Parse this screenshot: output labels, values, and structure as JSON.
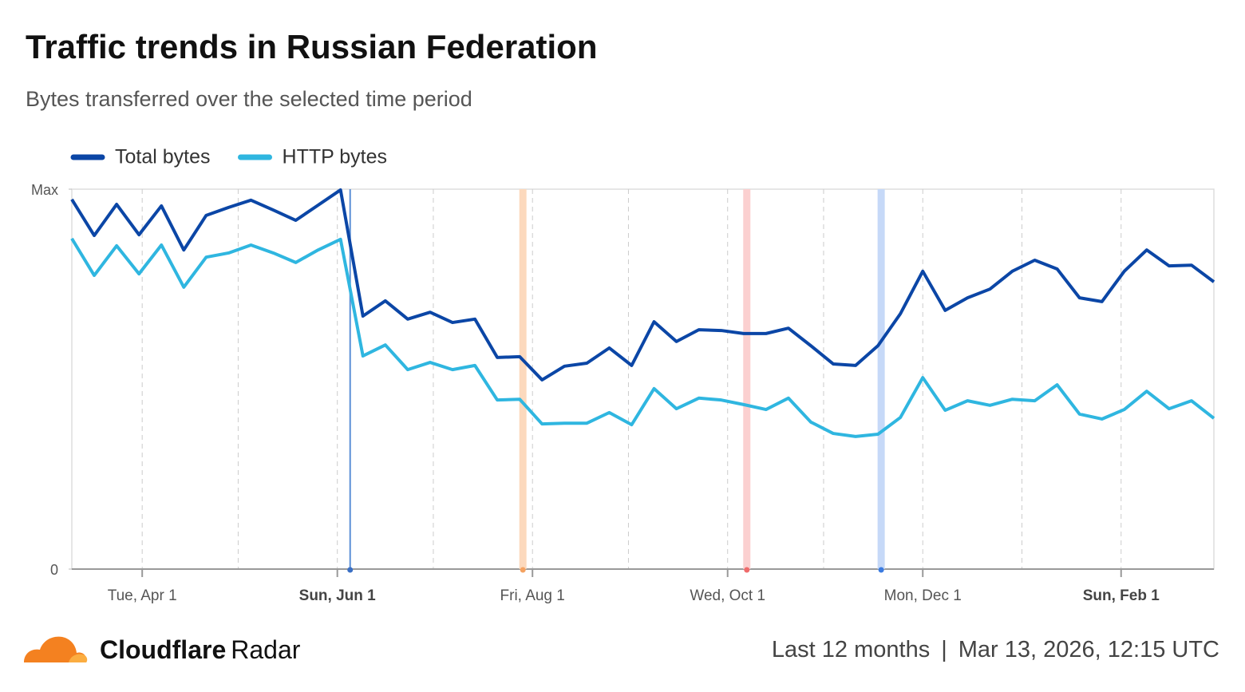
{
  "chart_data": {
    "type": "line",
    "title": "Traffic trends in Russian Federation",
    "subtitle": "Bytes transferred over the selected time period",
    "x": [
      0,
      7,
      14,
      21,
      28,
      35,
      42,
      49,
      56,
      63,
      70,
      77,
      84,
      91,
      98,
      105,
      112,
      119,
      126,
      133,
      140,
      147,
      154,
      161,
      168,
      175,
      182,
      189,
      196,
      203,
      210,
      217,
      224,
      231,
      238,
      245,
      252,
      259,
      266,
      273,
      280,
      287,
      294,
      301,
      308,
      315,
      322,
      329,
      336,
      343,
      350,
      357
    ],
    "series": [
      {
        "name": "Total bytes",
        "color": "#0b46a6",
        "values": [
          0.973,
          0.878,
          0.96,
          0.88,
          0.956,
          0.84,
          0.931,
          0.952,
          0.971,
          0.945,
          0.918,
          0.958,
          0.998,
          0.666,
          0.706,
          0.658,
          0.676,
          0.649,
          0.658,
          0.557,
          0.559,
          0.498,
          0.534,
          0.542,
          0.582,
          0.536,
          0.651,
          0.599,
          0.63,
          0.628,
          0.62,
          0.62,
          0.634,
          0.588,
          0.54,
          0.536,
          0.588,
          0.672,
          0.784,
          0.681,
          0.714,
          0.737,
          0.784,
          0.813,
          0.79,
          0.714,
          0.704,
          0.784,
          0.84,
          0.798,
          0.8,
          0.756
        ]
      },
      {
        "name": "HTTP bytes",
        "color": "#2fb6e0",
        "values": [
          0.87,
          0.773,
          0.851,
          0.777,
          0.853,
          0.742,
          0.821,
          0.832,
          0.853,
          0.832,
          0.807,
          0.84,
          0.868,
          0.561,
          0.59,
          0.525,
          0.544,
          0.525,
          0.536,
          0.445,
          0.447,
          0.382,
          0.384,
          0.384,
          0.412,
          0.38,
          0.475,
          0.422,
          0.45,
          0.445,
          0.433,
          0.42,
          0.45,
          0.387,
          0.357,
          0.349,
          0.355,
          0.399,
          0.504,
          0.418,
          0.443,
          0.431,
          0.447,
          0.443,
          0.485,
          0.408,
          0.395,
          0.42,
          0.468,
          0.422,
          0.443,
          0.397
        ]
      }
    ],
    "xlim": [
      0,
      357
    ],
    "xticks": [
      {
        "value": 22,
        "label": "Tue, Apr 1"
      },
      {
        "value": 83,
        "label": "Sun, Jun 1",
        "bold": true
      },
      {
        "value": 144,
        "label": "Fri, Aug 1"
      },
      {
        "value": 205,
        "label": "Wed, Oct 1"
      },
      {
        "value": 266,
        "label": "Mon, Dec 1"
      },
      {
        "value": 328,
        "label": "Sun, Feb 1",
        "bold": true
      }
    ],
    "xgrid": [
      52,
      113,
      174,
      235,
      297
    ],
    "ylim": [
      0,
      1
    ],
    "yticks": [
      {
        "value": 0,
        "label": "0"
      },
      {
        "value": 1,
        "label": "Max"
      }
    ],
    "events": [
      {
        "x": 87,
        "color": "#5b8fd6",
        "dot": "#3a6fc4",
        "width": 2
      },
      {
        "x": 141,
        "color": "#fcd9bd",
        "dot": "#f4a261",
        "width": 9
      },
      {
        "x": 211,
        "color": "#fbd0d0",
        "dot": "#ef6b6b",
        "width": 9
      },
      {
        "x": 253,
        "color": "#c6d9f8",
        "dot": "#3b7be0",
        "width": 9
      }
    ],
    "legend": "top-left"
  },
  "footer": {
    "brand": "Cloudflare",
    "product": "Radar",
    "period": "Last 12 months",
    "separator": "|",
    "timestamp": "Mar 13, 2026, 12:15 UTC"
  }
}
